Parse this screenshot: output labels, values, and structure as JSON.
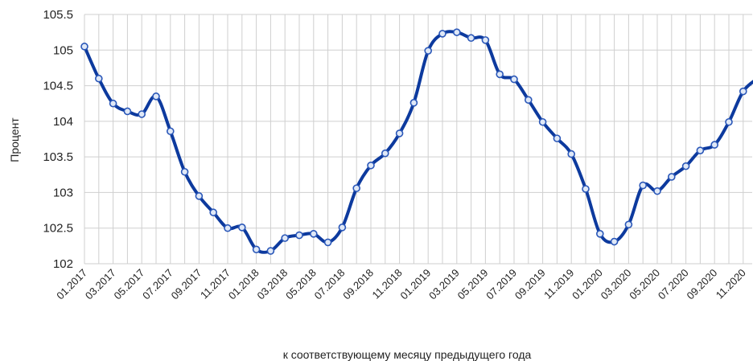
{
  "chart_data": {
    "type": "line",
    "title": "",
    "xlabel": "к соответствующему месяцу предыдущего года",
    "ylabel": "Процент",
    "ylim": [
      102,
      105.5
    ],
    "y_ticks": [
      "102",
      "102.5",
      "103",
      "103.5",
      "104",
      "104.5",
      "105",
      "105.5"
    ],
    "grid": true,
    "legend": "none",
    "colors": {
      "line": "#0d3a9e",
      "marker": "#2a57b8",
      "grid": "#cfcfcf"
    },
    "x_tick_labels": [
      "01.2017",
      "03.2017",
      "05.2017",
      "07.2017",
      "09.2017",
      "11.2017",
      "01.2018",
      "03.2018",
      "05.2018",
      "07.2018",
      "09.2018",
      "11.2018",
      "01.2019",
      "03.2019",
      "05.2019",
      "07.2019",
      "09.2019",
      "11.2019",
      "01.2020",
      "03.2020",
      "05.2020",
      "07.2020",
      "09.2020",
      "11.2020"
    ],
    "categories": [
      "01.2017",
      "02.2017",
      "03.2017",
      "04.2017",
      "05.2017",
      "06.2017",
      "07.2017",
      "08.2017",
      "09.2017",
      "10.2017",
      "11.2017",
      "12.2017",
      "01.2018",
      "02.2018",
      "03.2018",
      "04.2018",
      "05.2018",
      "06.2018",
      "07.2018",
      "08.2018",
      "09.2018",
      "10.2018",
      "11.2018",
      "12.2018",
      "01.2019",
      "02.2019",
      "03.2019",
      "04.2019",
      "05.2019",
      "06.2019",
      "07.2019",
      "08.2019",
      "09.2019",
      "10.2019",
      "11.2019",
      "12.2019",
      "01.2020",
      "02.2020",
      "03.2020",
      "04.2020",
      "05.2020",
      "06.2020",
      "07.2020",
      "08.2020",
      "09.2020",
      "10.2020",
      "11.2020",
      "12.2020"
    ],
    "series": [
      {
        "values": [
          105.05,
          104.6,
          104.25,
          104.14,
          104.1,
          104.35,
          103.86,
          103.29,
          102.95,
          102.72,
          102.5,
          102.51,
          102.2,
          102.18,
          102.36,
          102.4,
          102.42,
          102.3,
          102.51,
          103.06,
          103.38,
          103.55,
          103.83,
          104.26,
          104.99,
          105.23,
          105.25,
          105.17,
          105.14,
          104.66,
          104.59,
          104.3,
          103.99,
          103.76,
          103.54,
          103.05,
          102.42,
          102.31,
          102.55,
          103.1,
          103.02,
          103.22,
          103.37,
          103.59,
          103.67,
          103.99,
          104.42,
          104.6
        ]
      }
    ]
  }
}
